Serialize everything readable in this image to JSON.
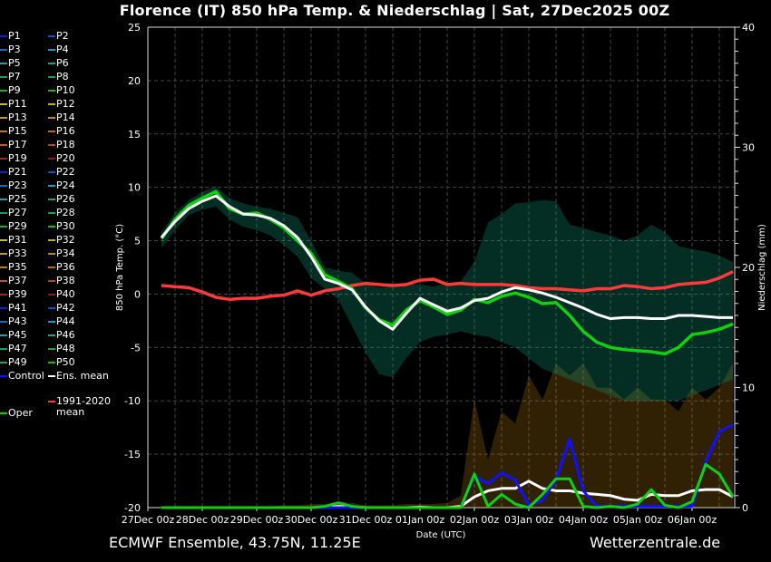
{
  "title": "Florence  (IT)  850 hPa Temp. & Niederschlag | Sat, 27Dec2025 00Z",
  "footer": {
    "left": "ECMWF Ensemble, 43.75N, 11.25E",
    "right": "Wetterzentrale.de"
  },
  "legend": {
    "members": [
      "P1",
      "P2",
      "P3",
      "P4",
      "P5",
      "P6",
      "P7",
      "P8",
      "P9",
      "P10",
      "P11",
      "P12",
      "P13",
      "P14",
      "P15",
      "P16",
      "P17",
      "P18",
      "P19",
      "P20",
      "P21",
      "P22",
      "P23",
      "P24",
      "P25",
      "P26",
      "P27",
      "P28",
      "P29",
      "P30",
      "P31",
      "P32",
      "P33",
      "P34",
      "P35",
      "P36",
      "P37",
      "P38",
      "P39",
      "P40",
      "P41",
      "P42",
      "P43",
      "P44",
      "P45",
      "P46",
      "P47",
      "P48",
      "P49",
      "P50"
    ],
    "member_colors": [
      "#1818d8",
      "#1050c8",
      "#1070b8",
      "#10a0c8",
      "#10a8a8",
      "#10a888",
      "#10a060",
      "#10a848",
      "#10b030",
      "#10c010",
      "#c8c010",
      "#c0b010",
      "#c09a10",
      "#c08810",
      "#c07810",
      "#c06810",
      "#c05818",
      "#b04818",
      "#a02818",
      "#901818"
    ],
    "control": {
      "label": "Control",
      "color": "#1010ff"
    },
    "ens_mean": {
      "label": "Ens. mean",
      "color": "#ffffff"
    },
    "climate": {
      "label": "1991-2020",
      "label2": "mean",
      "color": "#ff3a3a"
    },
    "oper": {
      "label": "Oper",
      "color": "#10d010"
    }
  },
  "chart_data": {
    "type": "line",
    "xlabel": "Date (UTC)",
    "ylabel": "850 hPa Temp. (°C)",
    "y2label": "Niederschlag (mm)",
    "x_tick_labels": [
      "27Dec 00z",
      "28Dec 00z",
      "29Dec 00z",
      "30Dec 00z",
      "31Dec 00z",
      "01Jan 00z",
      "02Jan 00z",
      "03Jan 00z",
      "04Jan 00z",
      "05Jan 00z",
      "06Jan 00z"
    ],
    "x_start": "27Dec 06z",
    "x_step_hours": 6,
    "ylim": [
      -20,
      25
    ],
    "y_ticks": [
      25,
      20,
      15,
      10,
      5,
      0,
      -5,
      -10,
      -15,
      -20
    ],
    "y2lim": [
      0,
      40
    ],
    "y2_ticks": [
      40,
      30,
      20,
      10,
      0
    ],
    "grid": true,
    "legend_position": "left",
    "temperature": {
      "ens_mean": [
        5.3,
        6.8,
        8.0,
        8.7,
        9.2,
        8.2,
        7.5,
        7.4,
        7.1,
        6.4,
        5.3,
        3.5,
        1.4,
        1.0,
        0.4,
        -1.2,
        -2.5,
        -3.3,
        -1.8,
        -0.4,
        -1.0,
        -1.6,
        -1.3,
        -0.6,
        -0.4,
        0.2,
        0.6,
        0.4,
        0.1,
        -0.3,
        -0.8,
        -1.3,
        -1.9,
        -2.3,
        -2.2,
        -2.2,
        -2.3,
        -2.3,
        -2.0,
        -2.0,
        -2.1,
        -2.2,
        -2.2
      ],
      "oper": [
        5.2,
        7.0,
        8.3,
        9.0,
        9.6,
        8.0,
        7.5,
        7.6,
        7.0,
        6.2,
        5.0,
        3.8,
        1.8,
        1.2,
        0.5,
        -1.3,
        -2.4,
        -2.9,
        -1.5,
        -0.6,
        -1.2,
        -1.9,
        -1.5,
        -0.5,
        -0.8,
        -0.2,
        0.1,
        -0.3,
        -0.9,
        -0.8,
        -2.0,
        -3.5,
        -4.5,
        -5.0,
        -5.2,
        -5.3,
        -5.4,
        -5.6,
        -5.0,
        -3.8,
        -3.6,
        -3.3,
        -2.8
      ],
      "climate_1991_2020_mean": [
        0.8,
        0.7,
        0.6,
        0.2,
        -0.3,
        -0.5,
        -0.4,
        -0.4,
        -0.2,
        -0.1,
        0.3,
        -0.1,
        0.3,
        0.5,
        0.8,
        1.0,
        0.9,
        0.8,
        0.9,
        1.3,
        1.4,
        0.9,
        1.0,
        0.9,
        0.9,
        0.9,
        0.8,
        0.6,
        0.5,
        0.5,
        0.4,
        0.3,
        0.5,
        0.5,
        0.8,
        0.7,
        0.5,
        0.6,
        0.9,
        1.0,
        1.1,
        1.5,
        2.1
      ],
      "members_max": [
        5.8,
        7.6,
        8.8,
        9.6,
        10.1,
        9.0,
        8.5,
        8.2,
        8.0,
        7.6,
        7.2,
        5.0,
        2.5,
        2.2,
        2.0,
        1.0,
        0.6,
        0.8,
        1.0,
        0.9,
        0.7,
        1.0,
        1.2,
        3.0,
        6.7,
        7.5,
        8.5,
        8.6,
        8.8,
        8.7,
        6.5,
        6.2,
        5.8,
        5.5,
        5.0,
        5.5,
        6.5,
        5.8,
        4.5,
        4.2,
        4.0,
        3.6,
        3.0
      ],
      "members_min": [
        4.3,
        6.0,
        7.4,
        7.9,
        8.2,
        7.0,
        6.3,
        6.0,
        5.5,
        4.6,
        3.5,
        1.5,
        0.5,
        -0.5,
        -3.0,
        -5.5,
        -7.5,
        -7.8,
        -6.0,
        -4.5,
        -4.0,
        -3.8,
        -3.5,
        -3.8,
        -4.0,
        -4.5,
        -5.0,
        -6.0,
        -7.0,
        -7.5,
        -8.0,
        -8.5,
        -9.0,
        -9.5,
        -10.0,
        -10.0,
        -10.0,
        -10.0,
        -10.0,
        -9.5,
        -9.0,
        -8.5,
        -8.0
      ]
    },
    "precipitation": {
      "ens_mean": [
        0,
        0,
        0,
        0,
        0,
        0,
        0,
        0,
        0,
        0,
        0,
        0,
        0,
        0.1,
        0.05,
        0,
        0,
        0,
        0,
        0.05,
        0,
        0,
        0.1,
        0.9,
        1.4,
        1.6,
        1.6,
        2.2,
        1.6,
        1.4,
        1.4,
        1.2,
        1.1,
        1.0,
        0.7,
        0.6,
        1.1,
        1.0,
        1.0,
        1.4,
        1.5,
        1.5,
        0.9
      ],
      "control": [
        0,
        0,
        0,
        0,
        0,
        0,
        0,
        0,
        0,
        0,
        0,
        0,
        0,
        0,
        0,
        0,
        0,
        0,
        0,
        0,
        0,
        0,
        0,
        2.6,
        2.0,
        2.9,
        2.3,
        0.2,
        0.6,
        2.3,
        5.7,
        1.4,
        0.1,
        0.1,
        0.1,
        0.1,
        0.1,
        0.1,
        0.1,
        0.1,
        3.8,
        6.3,
        6.9
      ],
      "oper": [
        0,
        0,
        0,
        0,
        0,
        0,
        0,
        0,
        0,
        0,
        0,
        0,
        0.1,
        0.4,
        0.1,
        0,
        0,
        0,
        0,
        0,
        0,
        0,
        0,
        2.8,
        0.1,
        1.1,
        0.3,
        0,
        1.1,
        2.4,
        2.4,
        0.1,
        0,
        0.1,
        0,
        0.3,
        1.5,
        0.2,
        0,
        0.5,
        3.6,
        2.8,
        0.9
      ],
      "members_max": [
        0.1,
        0.1,
        0.1,
        0.1,
        0.1,
        0.1,
        0.1,
        0.1,
        0.1,
        0.2,
        0.2,
        0.3,
        0.3,
        0.5,
        0.4,
        0.2,
        0.2,
        0.2,
        0.3,
        0.3,
        0.3,
        0.4,
        1.0,
        9.0,
        4.0,
        8.0,
        7.0,
        11.0,
        9.0,
        12.0,
        11.0,
        12.0,
        10.0,
        10.0,
        9.0,
        10.0,
        9.0,
        9.0,
        8.0,
        10.0,
        9.0,
        10.0,
        12.0
      ]
    }
  }
}
